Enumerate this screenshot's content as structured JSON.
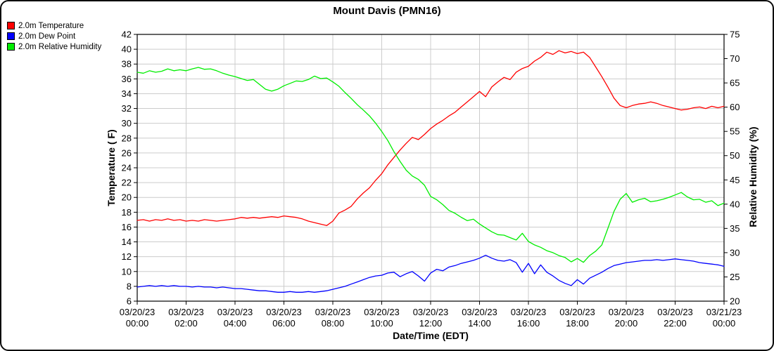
{
  "title": "Mount Davis (PMN16)",
  "legend": {
    "items": [
      {
        "label": "2.0m Temperature",
        "color": "#ff0000"
      },
      {
        "label": "2.0m Dew Point",
        "color": "#0000ff"
      },
      {
        "label": "2.0m Relative Humidity",
        "color": "#00ee00"
      }
    ]
  },
  "chart_data": {
    "type": "line",
    "title": "Mount Davis (PMN16)",
    "grid": true,
    "grid_color": "#cccccc",
    "frame_color": "#000000",
    "x_axis": {
      "label": "Date/Time (EDT)",
      "range_hours": [
        0,
        24
      ],
      "tick_interval_hours": 2,
      "ticks": [
        {
          "date": "03/20/23",
          "time": "00:00"
        },
        {
          "date": "03/20/23",
          "time": "02:00"
        },
        {
          "date": "03/20/23",
          "time": "04:00"
        },
        {
          "date": "03/20/23",
          "time": "06:00"
        },
        {
          "date": "03/20/23",
          "time": "08:00"
        },
        {
          "date": "03/20/23",
          "time": "10:00"
        },
        {
          "date": "03/20/23",
          "time": "12:00"
        },
        {
          "date": "03/20/23",
          "time": "14:00"
        },
        {
          "date": "03/20/23",
          "time": "16:00"
        },
        {
          "date": "03/20/23",
          "time": "18:00"
        },
        {
          "date": "03/20/23",
          "time": "20:00"
        },
        {
          "date": "03/20/23",
          "time": "22:00"
        },
        {
          "date": "03/21/23",
          "time": "00:00"
        }
      ]
    },
    "y_left": {
      "label": "Temperature ( F)",
      "range": [
        6,
        42
      ],
      "tick_step": 2,
      "ticks": [
        42,
        40,
        38,
        36,
        34,
        32,
        30,
        28,
        26,
        24,
        22,
        20,
        18,
        16,
        14,
        12,
        10,
        8,
        6
      ]
    },
    "y_right": {
      "label": "Relative Humidity (%)",
      "range": [
        20,
        75
      ],
      "tick_step": 5,
      "ticks": [
        75,
        70,
        65,
        60,
        55,
        50,
        45,
        40,
        35,
        30,
        25,
        20
      ]
    },
    "sampling": {
      "start_hour": 0,
      "step_hours": 0.25
    },
    "series": [
      {
        "name": "2.0m Temperature",
        "axis": "left",
        "color": "#ff0000",
        "values": [
          16.9,
          17.0,
          16.8,
          17.0,
          16.9,
          17.1,
          16.9,
          17.0,
          16.8,
          16.9,
          16.8,
          17.0,
          16.9,
          16.8,
          16.9,
          17.0,
          17.1,
          17.3,
          17.2,
          17.3,
          17.2,
          17.3,
          17.4,
          17.3,
          17.5,
          17.4,
          17.3,
          17.1,
          16.8,
          16.6,
          16.4,
          16.2,
          16.8,
          17.9,
          18.3,
          18.8,
          19.8,
          20.6,
          21.3,
          22.3,
          23.2,
          24.4,
          25.4,
          26.4,
          27.3,
          28.1,
          27.8,
          28.5,
          29.3,
          29.9,
          30.4,
          31.0,
          31.5,
          32.2,
          32.9,
          33.6,
          34.3,
          33.6,
          34.9,
          35.6,
          36.2,
          35.9,
          36.9,
          37.4,
          37.7,
          38.4,
          38.9,
          39.6,
          39.3,
          39.8,
          39.5,
          39.7,
          39.4,
          39.6,
          38.9,
          37.6,
          36.3,
          34.9,
          33.4,
          32.4,
          32.1,
          32.4,
          32.6,
          32.7,
          32.9,
          32.7,
          32.4,
          32.2,
          32.0,
          31.8,
          31.9,
          32.1,
          32.2,
          32.0,
          32.3,
          32.1,
          32.3
        ]
      },
      {
        "name": "2.0m Dew Point",
        "axis": "left",
        "color": "#0000ff",
        "values": [
          7.9,
          8.0,
          8.1,
          8.0,
          8.1,
          8.0,
          8.1,
          8.0,
          8.0,
          7.9,
          8.0,
          7.9,
          7.9,
          7.8,
          7.9,
          7.8,
          7.7,
          7.7,
          7.6,
          7.5,
          7.4,
          7.4,
          7.3,
          7.2,
          7.2,
          7.3,
          7.2,
          7.2,
          7.3,
          7.2,
          7.3,
          7.4,
          7.6,
          7.8,
          8.0,
          8.3,
          8.6,
          8.9,
          9.2,
          9.4,
          9.5,
          9.8,
          9.9,
          9.3,
          9.7,
          10.0,
          9.4,
          8.7,
          9.8,
          10.3,
          10.1,
          10.6,
          10.8,
          11.1,
          11.3,
          11.5,
          11.8,
          12.2,
          11.8,
          11.5,
          11.4,
          11.6,
          11.2,
          9.9,
          11.1,
          9.7,
          10.9,
          9.9,
          9.4,
          8.8,
          8.4,
          8.1,
          8.9,
          8.3,
          9.1,
          9.5,
          9.9,
          10.4,
          10.8,
          11.0,
          11.2,
          11.3,
          11.4,
          11.5,
          11.5,
          11.6,
          11.5,
          11.6,
          11.7,
          11.6,
          11.5,
          11.4,
          11.2,
          11.1,
          11.0,
          10.9,
          10.7
        ]
      },
      {
        "name": "2.0m Relative Humidity",
        "axis": "right",
        "color": "#00ee00",
        "values": [
          67.2,
          67.0,
          67.5,
          67.2,
          67.4,
          67.9,
          67.5,
          67.7,
          67.5,
          67.9,
          68.2,
          67.8,
          67.9,
          67.5,
          67.0,
          66.6,
          66.3,
          65.9,
          65.5,
          65.7,
          64.7,
          63.7,
          63.3,
          63.7,
          64.4,
          64.9,
          65.4,
          65.3,
          65.7,
          66.4,
          65.9,
          66.0,
          65.2,
          64.3,
          63.0,
          61.8,
          60.5,
          59.4,
          58.2,
          56.7,
          55.0,
          53.1,
          50.8,
          48.8,
          47.0,
          45.8,
          45.1,
          43.9,
          41.6,
          40.9,
          39.9,
          38.7,
          38.1,
          37.3,
          36.6,
          36.9,
          35.9,
          35.1,
          34.3,
          33.7,
          33.6,
          33.1,
          32.6,
          34.0,
          32.3,
          31.6,
          31.1,
          30.4,
          30.0,
          29.4,
          29.0,
          28.1,
          28.8,
          28.0,
          29.4,
          30.3,
          31.6,
          35.0,
          38.5,
          41.0,
          42.2,
          40.4,
          40.9,
          41.2,
          40.5,
          40.7,
          41.0,
          41.4,
          41.9,
          42.4,
          41.5,
          40.9,
          41.0,
          40.4,
          40.7,
          39.7,
          40.2
        ]
      }
    ]
  }
}
